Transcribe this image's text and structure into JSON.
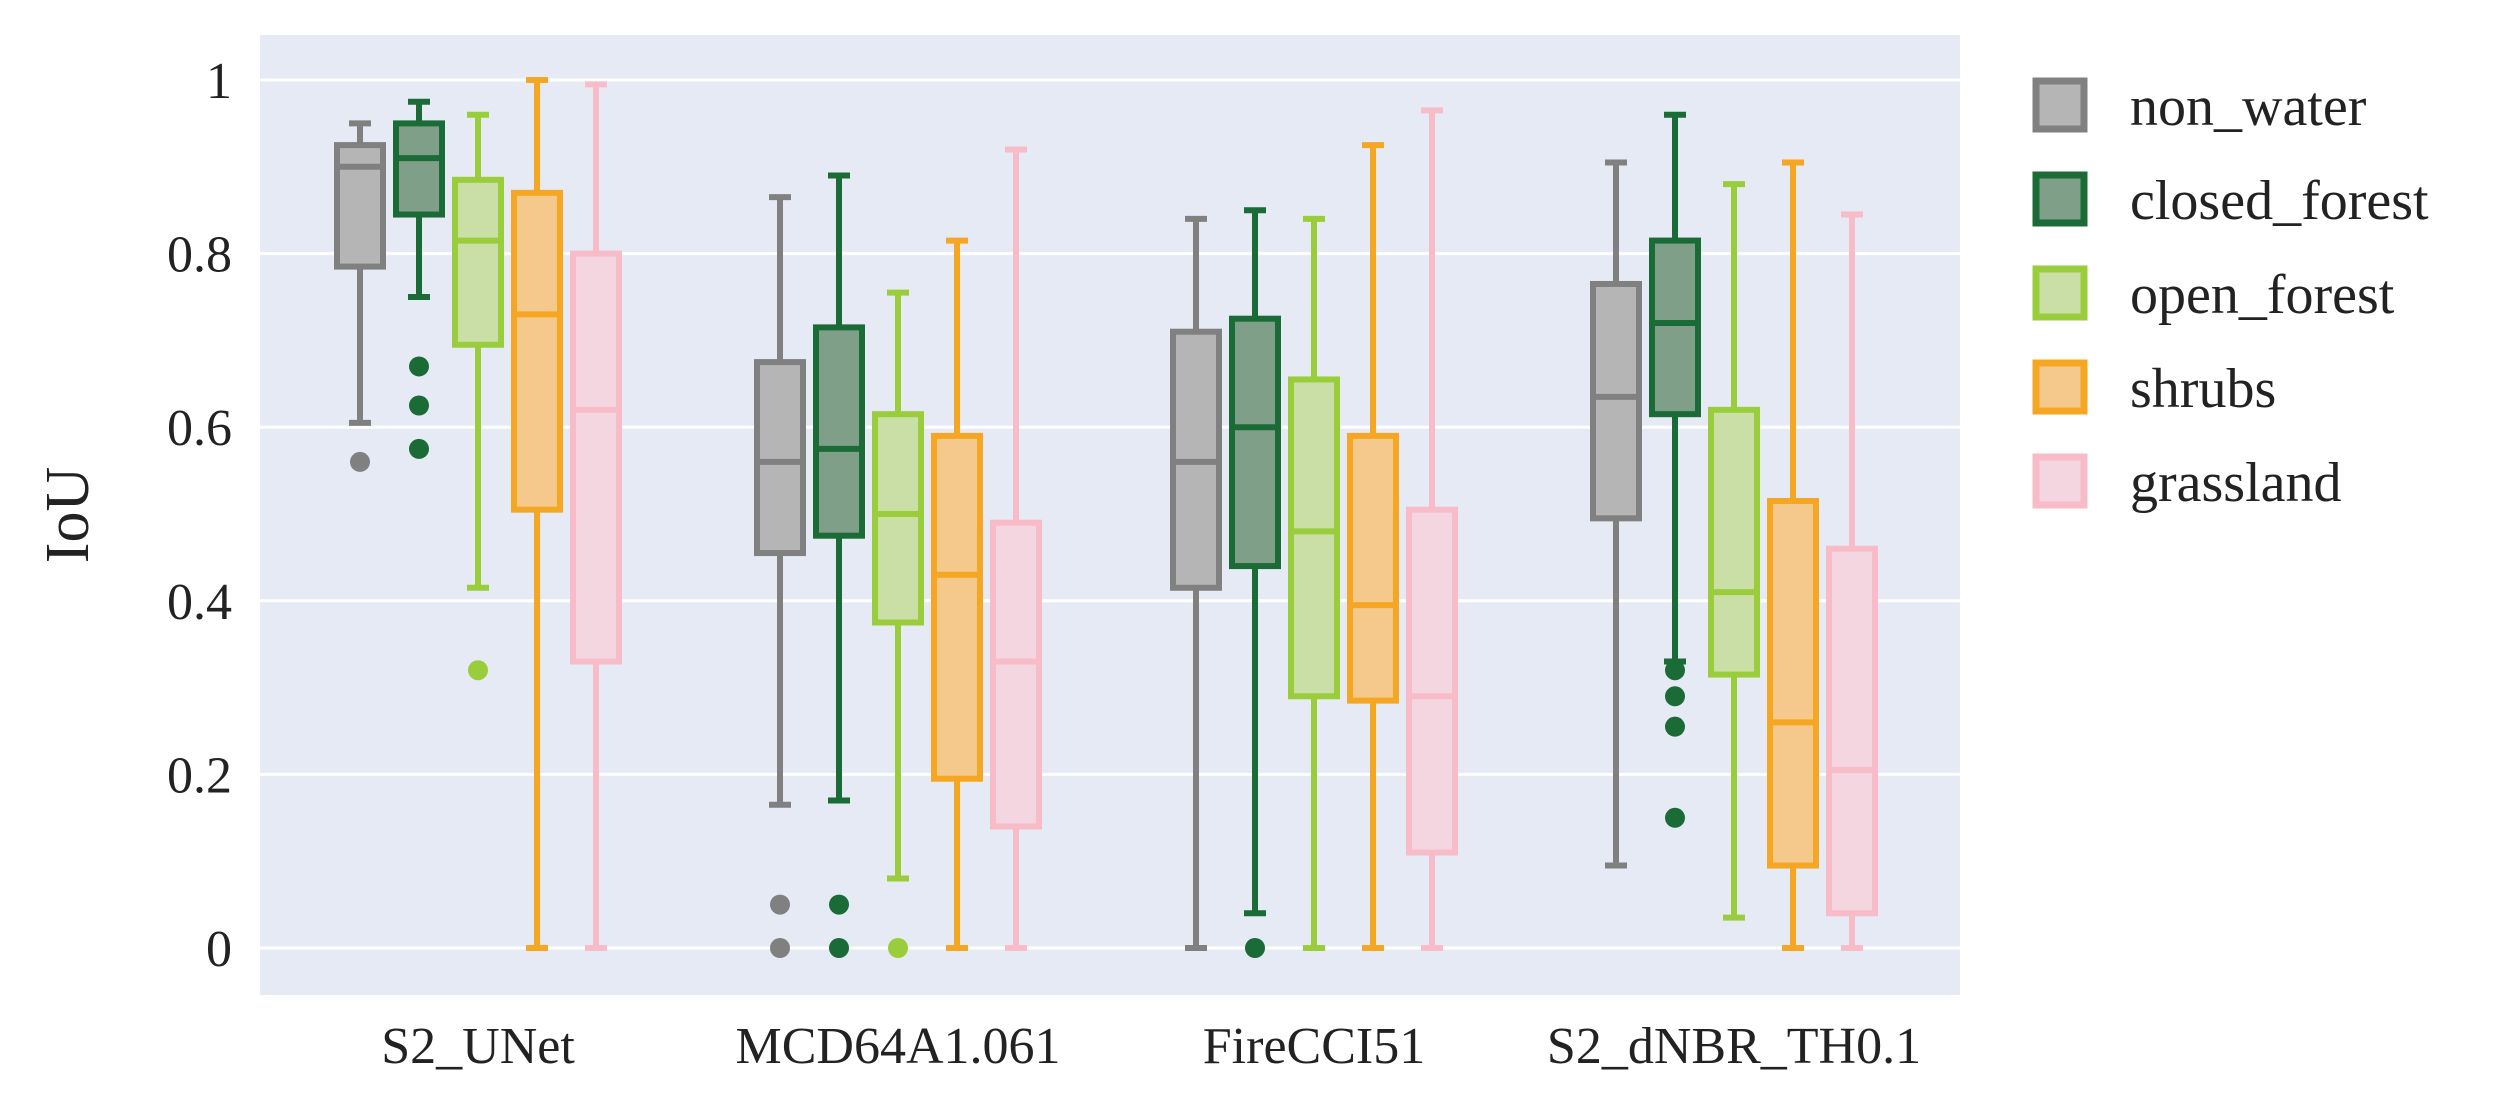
{
  "chart_data": {
    "type": "box",
    "title": "",
    "xlabel": "",
    "ylabel": "IoU",
    "ylim": [
      -0.05,
      1.05
    ],
    "yticks": [
      0,
      0.2,
      0.4,
      0.6,
      0.8,
      1
    ],
    "ytick_labels": [
      "0",
      "0.2",
      "0.4",
      "0.6",
      "0.8",
      "1"
    ],
    "grid": true,
    "legend_position": "outside-right",
    "categories": [
      "S2_UNet",
      "MCD64A1.061",
      "FireCCI51",
      "S2_dNBR_TH0.1"
    ],
    "series": [
      {
        "name": "non_water",
        "color": "#808080",
        "fill": "#b5b5b5",
        "boxes": [
          {
            "min": 0.605,
            "q1": 0.785,
            "median": 0.9,
            "q3": 0.925,
            "max": 0.95,
            "outliers": [
              0.56
            ]
          },
          {
            "min": 0.165,
            "q1": 0.455,
            "median": 0.56,
            "q3": 0.675,
            "max": 0.865,
            "outliers": [
              0.05,
              0.0
            ]
          },
          {
            "min": 0.0,
            "q1": 0.415,
            "median": 0.56,
            "q3": 0.71,
            "max": 0.84,
            "outliers": []
          },
          {
            "min": 0.095,
            "q1": 0.495,
            "median": 0.635,
            "q3": 0.765,
            "max": 0.905,
            "outliers": []
          }
        ]
      },
      {
        "name": "closed_forest",
        "color": "#1a6b36",
        "fill": "#7f9f88",
        "boxes": [
          {
            "min": 0.75,
            "q1": 0.845,
            "median": 0.91,
            "q3": 0.95,
            "max": 0.975,
            "outliers": [
              0.67,
              0.625,
              0.575
            ]
          },
          {
            "min": 0.17,
            "q1": 0.475,
            "median": 0.575,
            "q3": 0.715,
            "max": 0.89,
            "outliers": [
              0.05,
              0.0
            ]
          },
          {
            "min": 0.04,
            "q1": 0.44,
            "median": 0.6,
            "q3": 0.725,
            "max": 0.85,
            "outliers": [
              0.0
            ]
          },
          {
            "min": 0.33,
            "q1": 0.615,
            "median": 0.72,
            "q3": 0.815,
            "max": 0.96,
            "outliers": [
              0.32,
              0.29,
              0.255,
              0.15
            ]
          }
        ]
      },
      {
        "name": "open_forest",
        "color": "#9acd3c",
        "fill": "#cadfa6",
        "boxes": [
          {
            "min": 0.415,
            "q1": 0.695,
            "median": 0.815,
            "q3": 0.885,
            "max": 0.96,
            "outliers": [
              0.32
            ]
          },
          {
            "min": 0.08,
            "q1": 0.375,
            "median": 0.5,
            "q3": 0.615,
            "max": 0.755,
            "outliers": [
              0.0
            ]
          },
          {
            "min": 0.0,
            "q1": 0.29,
            "median": 0.48,
            "q3": 0.655,
            "max": 0.84,
            "outliers": []
          },
          {
            "min": 0.035,
            "q1": 0.315,
            "median": 0.41,
            "q3": 0.62,
            "max": 0.88,
            "outliers": []
          }
        ]
      },
      {
        "name": "shrubs",
        "color": "#f5a623",
        "fill": "#f5c98c",
        "boxes": [
          {
            "min": 0.0,
            "q1": 0.505,
            "median": 0.73,
            "q3": 0.87,
            "max": 1.0,
            "outliers": []
          },
          {
            "min": 0.0,
            "q1": 0.195,
            "median": 0.43,
            "q3": 0.59,
            "max": 0.815,
            "outliers": []
          },
          {
            "min": 0.0,
            "q1": 0.285,
            "median": 0.395,
            "q3": 0.59,
            "max": 0.925,
            "outliers": []
          },
          {
            "min": 0.0,
            "q1": 0.095,
            "median": 0.26,
            "q3": 0.515,
            "max": 0.905,
            "outliers": []
          }
        ]
      },
      {
        "name": "grassland",
        "color": "#f7bcc8",
        "fill": "#f3d6df",
        "boxes": [
          {
            "min": 0.0,
            "q1": 0.33,
            "median": 0.62,
            "q3": 0.8,
            "max": 0.995,
            "outliers": []
          },
          {
            "min": 0.0,
            "q1": 0.14,
            "median": 0.33,
            "q3": 0.49,
            "max": 0.92,
            "outliers": []
          },
          {
            "min": 0.0,
            "q1": 0.11,
            "median": 0.29,
            "q3": 0.505,
            "max": 0.965,
            "outliers": []
          },
          {
            "min": 0.0,
            "q1": 0.04,
            "median": 0.205,
            "q3": 0.46,
            "max": 0.845,
            "outliers": []
          }
        ]
      }
    ]
  }
}
